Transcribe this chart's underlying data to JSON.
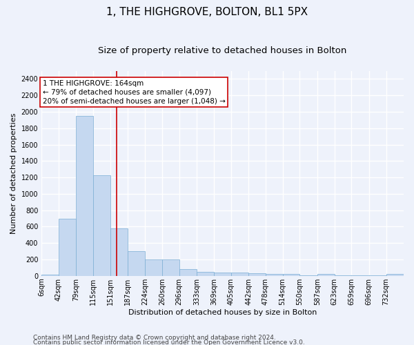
{
  "title": "1, THE HIGHGROVE, BOLTON, BL1 5PX",
  "subtitle": "Size of property relative to detached houses in Bolton",
  "xlabel": "Distribution of detached houses by size in Bolton",
  "ylabel": "Number of detached properties",
  "bin_edges": [
    6,
    42,
    79,
    115,
    151,
    187,
    224,
    260,
    296,
    333,
    369,
    405,
    442,
    478,
    514,
    550,
    587,
    623,
    659,
    696,
    732,
    769
  ],
  "bar_heights": [
    15,
    700,
    1950,
    1230,
    575,
    305,
    200,
    200,
    85,
    50,
    40,
    40,
    30,
    25,
    20,
    5,
    20,
    5,
    5,
    5,
    20
  ],
  "bar_color": "#c5d8f0",
  "bar_edge_color": "#7aadd4",
  "tick_labels": [
    "6sqm",
    "42sqm",
    "79sqm",
    "115sqm",
    "151sqm",
    "187sqm",
    "224sqm",
    "260sqm",
    "296sqm",
    "333sqm",
    "369sqm",
    "405sqm",
    "442sqm",
    "478sqm",
    "514sqm",
    "550sqm",
    "587sqm",
    "623sqm",
    "659sqm",
    "696sqm",
    "732sqm"
  ],
  "property_size": 164,
  "red_line_color": "#cc0000",
  "annotation_box_color": "#cc0000",
  "annotation_text": "1 THE HIGHGROVE: 164sqm\n← 79% of detached houses are smaller (4,097)\n20% of semi-detached houses are larger (1,048) →",
  "ylim": [
    0,
    2500
  ],
  "yticks": [
    0,
    200,
    400,
    600,
    800,
    1000,
    1200,
    1400,
    1600,
    1800,
    2000,
    2200,
    2400
  ],
  "footer1": "Contains HM Land Registry data © Crown copyright and database right 2024.",
  "footer2": "Contains public sector information licensed under the Open Government Licence v3.0.",
  "background_color": "#eef2fb",
  "plot_bg_color": "#eef2fb",
  "grid_color": "#ffffff",
  "title_fontsize": 11,
  "subtitle_fontsize": 9.5,
  "axis_label_fontsize": 8,
  "tick_fontsize": 7,
  "annotation_fontsize": 7.5,
  "footer_fontsize": 6.5
}
